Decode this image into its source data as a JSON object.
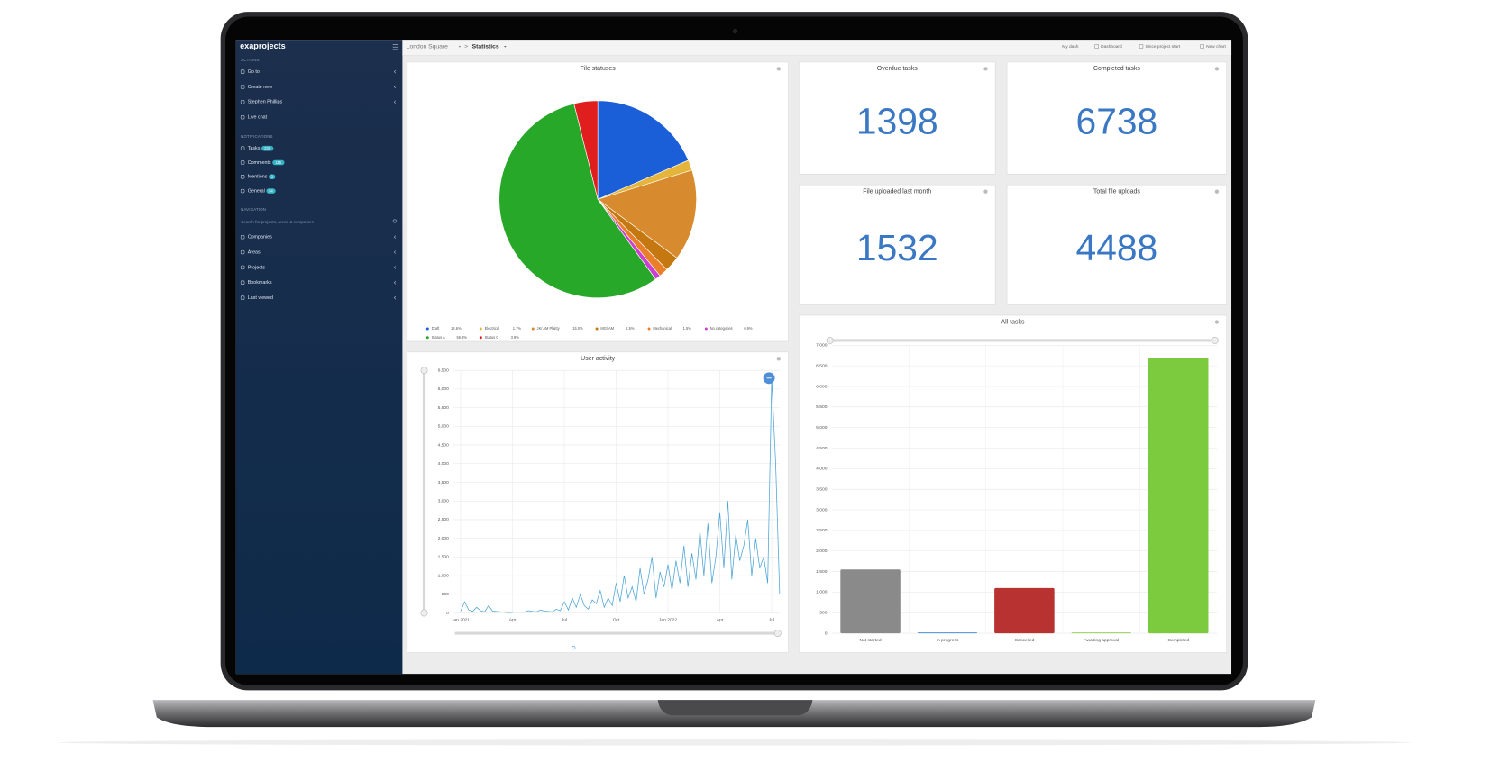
{
  "sidebar": {
    "brand": "exaprojects",
    "sections": [
      {
        "heading": "ACTIONS",
        "items": [
          {
            "label": "Go to"
          },
          {
            "label": "Create new"
          },
          {
            "label": "Stephen Phillips"
          },
          {
            "label": "Live chat"
          }
        ]
      },
      {
        "heading": "NOTIFICATIONS",
        "items": [
          {
            "label": "Tasks",
            "badge": "231"
          },
          {
            "label": "Comments",
            "badge": "115"
          },
          {
            "label": "Mentions",
            "badge": "2"
          },
          {
            "label": "General",
            "badge": "54"
          }
        ]
      },
      {
        "heading": "NAVIGATION",
        "search_placeholder": "Search for projects, areas & companies",
        "items": [
          {
            "label": "Companies"
          },
          {
            "label": "Areas"
          },
          {
            "label": "Projects"
          },
          {
            "label": "Bookmarks"
          },
          {
            "label": "Last viewed"
          }
        ]
      }
    ]
  },
  "header": {
    "breadcrumb": [
      "London Square",
      ">",
      "Statistics"
    ],
    "actions": [
      "My dash",
      "Dashboard",
      "Since project start",
      "New chart"
    ]
  },
  "kpis": [
    {
      "title": "Overdue tasks",
      "value": "1398"
    },
    {
      "title": "Completed tasks",
      "value": "6738"
    },
    {
      "title": "File uploaded last month",
      "value": "1532"
    },
    {
      "title": "Total file uploads",
      "value": "4488"
    }
  ],
  "chart_data": [
    {
      "type": "pie",
      "title": "File statuses",
      "categories": [
        "Draft",
        "Electrical",
        "JK/ AM Plaitty",
        "MG/ AM",
        "Mechanical",
        "No categories",
        "Status A",
        "Status C"
      ],
      "values": [
        18.6,
        1.7,
        15.0,
        2.5,
        1.5,
        0.9,
        56.3,
        3.9
      ],
      "value_labels": [
        "18.6%",
        "1.7%",
        "15.0%",
        "2.5%",
        "1.5%",
        "0.9%",
        "56.3%",
        "3.9%"
      ],
      "colors": [
        "#1a5ed8",
        "#e5b43a",
        "#d88a2e",
        "#c5780f",
        "#ea7f2a",
        "#cc3fd0",
        "#28a828",
        "#e01e1e"
      ]
    },
    {
      "type": "line",
      "title": "User activity",
      "color": "#4aa3d6",
      "x": [
        0,
        1,
        2,
        3,
        4,
        5,
        6,
        7,
        8,
        9,
        10,
        11,
        12,
        13,
        14,
        15,
        16,
        17,
        18,
        19,
        20,
        21,
        22,
        23,
        24,
        25,
        26,
        27,
        28,
        29,
        30,
        31,
        32,
        33,
        34,
        35,
        36,
        37,
        38,
        39,
        40,
        41,
        42,
        43,
        44,
        45,
        46,
        47,
        48,
        49,
        50,
        51,
        52,
        53,
        54,
        55,
        56,
        57,
        58,
        59,
        60,
        61,
        62,
        63,
        64,
        65,
        66,
        67,
        68,
        69,
        70,
        71,
        72,
        73,
        74,
        75,
        76,
        77,
        78,
        79,
        80
      ],
      "values": [
        50,
        300,
        80,
        40,
        150,
        60,
        30,
        200,
        50,
        40,
        30,
        20,
        10,
        15,
        30,
        20,
        25,
        60,
        40,
        30,
        80,
        50,
        40,
        30,
        100,
        60,
        300,
        80,
        400,
        150,
        500,
        200,
        100,
        350,
        250,
        600,
        150,
        400,
        200,
        800,
        300,
        1000,
        400,
        700,
        300,
        1200,
        500,
        900,
        1500,
        400,
        1100,
        700,
        1300,
        600,
        1400,
        800,
        1800,
        700,
        1600,
        900,
        2200,
        1000,
        2400,
        800,
        1500,
        2700,
        1200,
        3000,
        900,
        2100,
        1400,
        1800,
        2500,
        1000,
        2000,
        1200,
        1500,
        800,
        6300,
        4000,
        500
      ],
      "xlim": [
        -2,
        80
      ],
      "xticks": [
        {
          "value": 0,
          "label": "Jan 2021"
        },
        {
          "value": 13,
          "label": "Apr"
        },
        {
          "value": 26,
          "label": "Jul"
        },
        {
          "value": 39,
          "label": "Oct"
        },
        {
          "value": 52,
          "label": "Jan 2022"
        },
        {
          "value": 65,
          "label": "Apr"
        },
        {
          "value": 78,
          "label": "Jul"
        }
      ],
      "ylim": [
        0,
        6500
      ],
      "yticks": [
        0,
        500,
        {
          "value": 1000,
          "label": "1,000"
        },
        {
          "value": 1500,
          "label": "1,500"
        },
        {
          "value": 2000,
          "label": "2,000"
        },
        {
          "value": 2500,
          "label": "2,500"
        },
        {
          "value": 3000,
          "label": "3,000"
        },
        {
          "value": 3500,
          "label": "3,500"
        },
        {
          "value": 4000,
          "label": "4,000"
        },
        {
          "value": 4500,
          "label": "4,500"
        },
        {
          "value": 5000,
          "label": "5,000"
        },
        {
          "value": 5500,
          "label": "5,500"
        },
        {
          "value": 6000,
          "label": "6,000"
        },
        {
          "value": 6500,
          "label": "6,500"
        }
      ],
      "grid": true
    },
    {
      "type": "bar",
      "title": "All tasks",
      "categories": [
        "Not started",
        "In progress",
        "Cancelled",
        "Awaiting approval",
        "Completed"
      ],
      "values": [
        1550,
        20,
        1100,
        20,
        6700
      ],
      "colors": [
        "#8a8a8a",
        "#4a90d9",
        "#b83232",
        "#9ccf5a",
        "#7ccb3e"
      ],
      "ylim": [
        0,
        7000
      ],
      "yticks": [
        0,
        500,
        {
          "value": 1000,
          "label": "1,000"
        },
        {
          "value": 1500,
          "label": "1,500"
        },
        {
          "value": 2000,
          "label": "2,000"
        },
        {
          "value": 2500,
          "label": "2,500"
        },
        {
          "value": 3000,
          "label": "3,000"
        },
        {
          "value": 3500,
          "label": "3,500"
        },
        {
          "value": 4000,
          "label": "4,000"
        },
        {
          "value": 4500,
          "label": "4,500"
        },
        {
          "value": 5000,
          "label": "5,000"
        },
        {
          "value": 5500,
          "label": "5,500"
        },
        {
          "value": 6000,
          "label": "6,000"
        },
        {
          "value": 6500,
          "label": "6,500"
        },
        {
          "value": 7000,
          "label": "7,000"
        }
      ],
      "grid": true
    }
  ]
}
